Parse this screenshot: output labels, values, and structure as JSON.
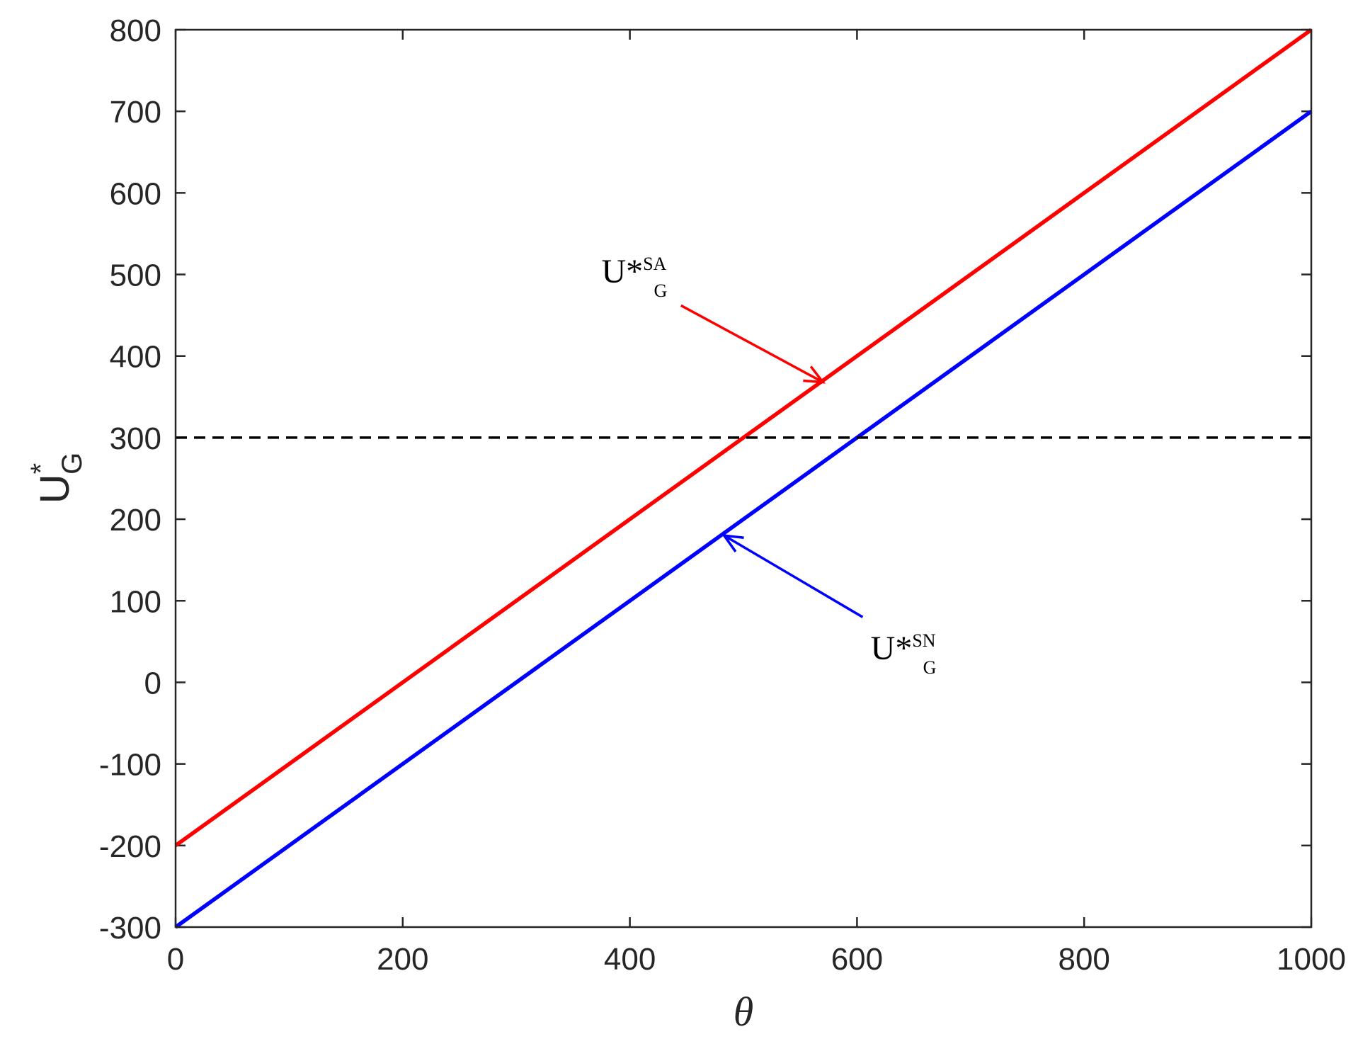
{
  "chart_data": {
    "type": "line",
    "xlabel": "θ",
    "ylabel": {
      "base": "U",
      "superscript": "*",
      "subscript": "G"
    },
    "xlim": [
      0,
      1000
    ],
    "ylim": [
      -300,
      800
    ],
    "xticks": [
      0,
      200,
      400,
      600,
      800,
      1000
    ],
    "xtick_labels": [
      "0",
      "200",
      "400",
      "600",
      "800",
      "1000"
    ],
    "yticks": [
      -300,
      -200,
      -100,
      0,
      100,
      200,
      300,
      400,
      500,
      600,
      700,
      800
    ],
    "ytick_labels": [
      "-300",
      "-200",
      "-100",
      "0",
      "100",
      "200",
      "300",
      "400",
      "500",
      "600",
      "700",
      "800"
    ],
    "grid": false,
    "legend": "none",
    "series": [
      {
        "key": "SA",
        "color": "#ff0000",
        "style": "solid",
        "x": [
          0,
          1000
        ],
        "y": [
          -200,
          800
        ]
      },
      {
        "key": "SN",
        "color": "#0000ff",
        "style": "solid",
        "x": [
          0,
          1000
        ],
        "y": [
          -300,
          700
        ]
      },
      {
        "key": "reference",
        "color": "#000000",
        "style": "dashed",
        "x": [
          0,
          1000
        ],
        "y": [
          300,
          300
        ]
      }
    ],
    "annotations": [
      {
        "series": "SA",
        "color": "#ff0000",
        "text": {
          "base": "U",
          "superscript": "*SA",
          "subscript": "G"
        },
        "text_anchor": {
          "x": 375,
          "y": 490
        },
        "arrow_from": {
          "x": 445,
          "y": 462
        },
        "arrow_to": {
          "x": 570,
          "y": 368
        }
      },
      {
        "series": "SN",
        "color": "#0000ff",
        "text": {
          "base": "U",
          "superscript": "*SN",
          "subscript": "G"
        },
        "text_anchor": {
          "x": 612,
          "y": 28
        },
        "arrow_from": {
          "x": 605,
          "y": 80
        },
        "arrow_to": {
          "x": 483,
          "y": 180
        }
      }
    ]
  }
}
